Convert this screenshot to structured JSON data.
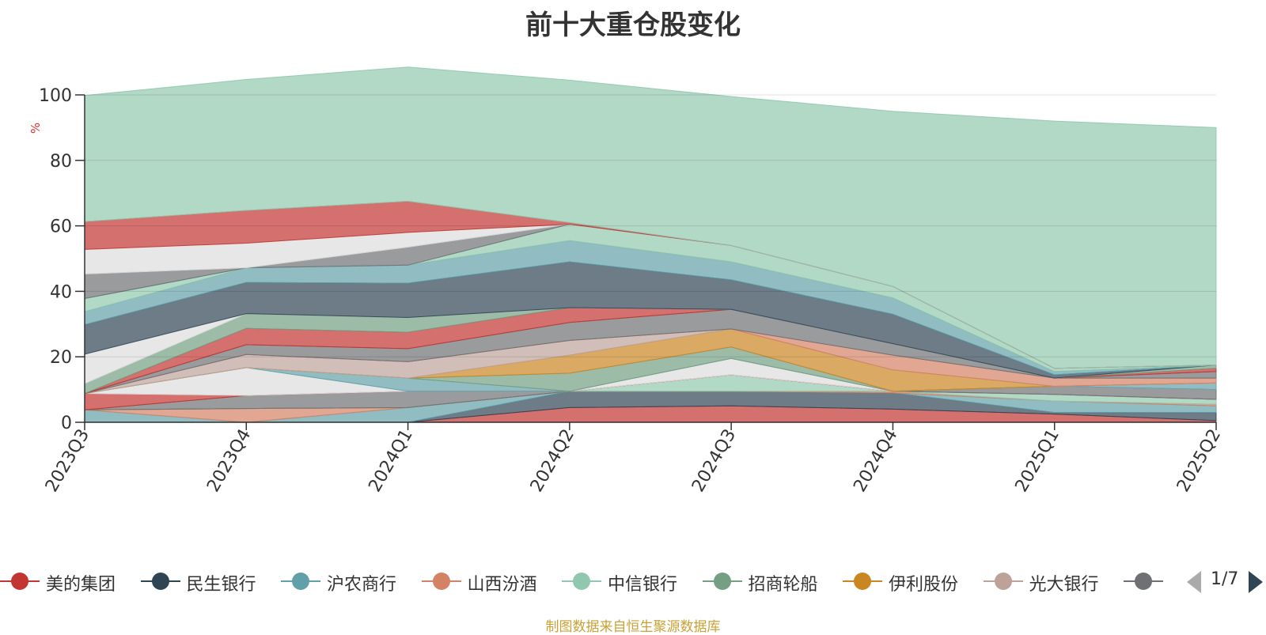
{
  "title": "前十大重仓股变化",
  "source_note": "制图数据来自恒生聚源数据库",
  "pager": {
    "label": "1/7",
    "prev_icon": "triangle-left-icon",
    "next_icon": "triangle-right-icon"
  },
  "legend": [
    {
      "label": "美的集团",
      "color": "#c23531"
    },
    {
      "label": "民生银行",
      "color": "#2f4554"
    },
    {
      "label": "沪农商行",
      "color": "#61a0a8"
    },
    {
      "label": "山西汾酒",
      "color": "#d48265"
    },
    {
      "label": "中信银行",
      "color": "#91c7ae"
    },
    {
      "label": "招商轮船",
      "color": "#749f83"
    },
    {
      "label": "伊利股份",
      "color": "#ca8622"
    },
    {
      "label": "光大银行",
      "color": "#bda29a"
    },
    {
      "label": "",
      "color": "#6e7074"
    }
  ],
  "chart_data": {
    "type": "area",
    "stacked": true,
    "title": "前十大重仓股变化",
    "ylabel": "%",
    "ylim": [
      0,
      100
    ],
    "yticks": [
      0,
      20,
      40,
      60,
      80,
      100
    ],
    "grid": true,
    "legend_position": "bottom",
    "categories": [
      "2023Q3",
      "2023Q4",
      "2024Q1",
      "2024Q2",
      "2024Q3",
      "2024Q4",
      "2025Q1",
      "2025Q2"
    ],
    "series": [
      {
        "name": "美的集团",
        "color": "#c23531",
        "values": [
          0,
          0,
          0,
          4.5,
          5.0,
          4.0,
          2.5,
          0.5
        ]
      },
      {
        "name": "民生银行",
        "color": "#2f4554",
        "values": [
          0,
          0,
          0,
          5.0,
          4.5,
          5.0,
          0.5,
          2.5
        ]
      },
      {
        "name": "沪农商行",
        "color": "#61a0a8",
        "values": [
          3.8,
          0,
          4.5,
          0,
          0,
          0,
          3.5,
          2.0
        ]
      },
      {
        "name": "山西汾酒",
        "color": "#d48265",
        "values": [
          0,
          4.2,
          0,
          0,
          0,
          0.5,
          0,
          0.5
        ]
      },
      {
        "name": "中信银行",
        "color": "#91c7ae",
        "values": [
          0,
          0,
          0,
          0,
          5.0,
          0,
          2.0,
          1.5
        ]
      },
      {
        "name": "招商轮船",
        "color": "#749f83",
        "values": [
          0,
          0,
          0,
          0,
          0,
          0,
          0,
          0
        ]
      },
      {
        "name": "伊利股份",
        "color": "#ca8622",
        "values": [
          0,
          0,
          0,
          0,
          0,
          0,
          0,
          0
        ]
      },
      {
        "name": "光大银行",
        "color": "#bda29a",
        "values": [
          0,
          0,
          0,
          0,
          0,
          0,
          0,
          0
        ]
      },
      {
        "name": "",
        "color": "#6e7074",
        "values": [
          0,
          4.0,
          5.0,
          0,
          0,
          0,
          2.5,
          3.0
        ]
      },
      {
        "name": "",
        "color": "#c23531",
        "values": [
          5.0,
          0,
          0,
          0,
          0,
          0,
          0,
          0
        ]
      },
      {
        "name": "",
        "color": "#dddddd",
        "values": [
          0,
          8.5,
          0,
          0,
          5.0,
          0,
          0,
          0
        ]
      },
      {
        "name": "",
        "color": "#61a0a8",
        "values": [
          0,
          0,
          4.0,
          0,
          0,
          0,
          0,
          2.0
        ]
      },
      {
        "name": "",
        "color": "#749f83",
        "values": [
          0,
          0,
          0,
          5.5,
          3.5,
          0,
          0,
          0
        ]
      },
      {
        "name": "",
        "color": "#ca8622",
        "values": [
          0,
          0,
          0,
          5.5,
          5.5,
          6.5,
          0,
          0
        ]
      },
      {
        "name": "",
        "color": "#bda29a",
        "values": [
          0,
          4.0,
          5.0,
          4.5,
          0,
          0,
          0,
          0
        ]
      },
      {
        "name": "",
        "color": "#d48265",
        "values": [
          0,
          0,
          0,
          0,
          0,
          4.5,
          2.5,
          1.5
        ]
      },
      {
        "name": "",
        "color": "#6e7074",
        "values": [
          0,
          3.0,
          4.0,
          5.5,
          6.0,
          3.5,
          0,
          2.0
        ]
      },
      {
        "name": "",
        "color": "#c23531",
        "values": [
          0,
          5.0,
          5.0,
          4.5,
          0,
          0,
          0,
          1.0
        ]
      },
      {
        "name": "",
        "color": "#749f83",
        "values": [
          3.0,
          4.5,
          4.5,
          0,
          0,
          0,
          0,
          1.0
        ]
      },
      {
        "name": "",
        "color": "#dddddd",
        "values": [
          9.0,
          0,
          0,
          0,
          0,
          0,
          0,
          0
        ]
      },
      {
        "name": "",
        "color": "#2f4554",
        "values": [
          9.0,
          9.5,
          10.5,
          14.0,
          9.0,
          9.0,
          1.0,
          0
        ]
      },
      {
        "name": "",
        "color": "#61a0a8",
        "values": [
          4.0,
          4.5,
          5.5,
          6.5,
          5.5,
          5.0,
          1.0,
          0
        ]
      },
      {
        "name": "",
        "color": "#91c7ae",
        "values": [
          4.0,
          0,
          0,
          5.0,
          5.0,
          3.5,
          1.0,
          0
        ]
      },
      {
        "name": "",
        "color": "#6e7074",
        "values": [
          7.5,
          0,
          5.5,
          0,
          0,
          0,
          0,
          0
        ]
      },
      {
        "name": "",
        "color": "#dddddd",
        "values": [
          7.5,
          7.5,
          4.5,
          0,
          0,
          0,
          0,
          0
        ]
      },
      {
        "name": "",
        "color": "#c23531",
        "values": [
          8.5,
          10.0,
          9.5,
          0.5,
          0,
          0,
          0,
          0
        ]
      },
      {
        "name": "",
        "color": "#91c7ae",
        "values": [
          38.5,
          40.0,
          41.0,
          43.5,
          45.5,
          53.5,
          75.5,
          72.5
        ]
      }
    ]
  }
}
